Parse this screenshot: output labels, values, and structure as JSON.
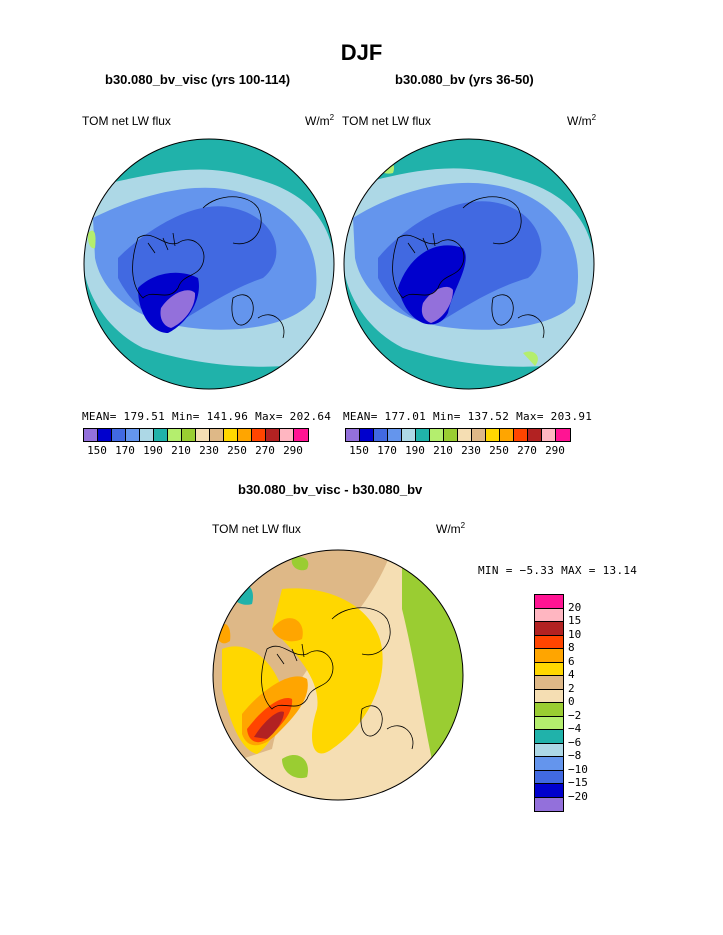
{
  "title": "DJF",
  "panels": [
    {
      "subtitle": "b30.080_bv_visc (yrs 100-114)",
      "left_label": "TOM net LW flux",
      "units_base": "W/m",
      "units_exp": "2",
      "stats": "MEAN= 179.51  Min= 141.96  Max= 202.64"
    },
    {
      "subtitle": "b30.080_bv (yrs 36-50)",
      "left_label": "TOM net LW flux",
      "units_base": "W/m",
      "units_exp": "2",
      "stats": "MEAN= 177.01  Min= 137.52  Max= 203.91"
    }
  ],
  "diff_panel": {
    "subtitle": "b30.080_bv_visc - b30.080_bv",
    "left_label": "TOM net LW flux",
    "units_base": "W/m",
    "units_exp": "2",
    "minmax": "MIN =  −5.33 MAX =  13.14"
  },
  "colorbar_abs": {
    "colors": [
      "#9370db",
      "#0000cd",
      "#4169e1",
      "#6495ed",
      "#add8e6",
      "#20b2aa",
      "#b4ee6e",
      "#9acd32",
      "#f5deb3",
      "#deb887",
      "#ffd700",
      "#ffa500",
      "#ff4500",
      "#b22222",
      "#ffb6c1",
      "#ff1493"
    ],
    "labels": [
      "150",
      "170",
      "190",
      "210",
      "230",
      "250",
      "270",
      "290"
    ]
  },
  "colorbar_diff": {
    "colors_top_to_bottom": [
      "#ff1493",
      "#ffb6c1",
      "#b22222",
      "#ff4500",
      "#ffa500",
      "#ffd700",
      "#deb887",
      "#f5deb3",
      "#9acd32",
      "#b4ee6e",
      "#20b2aa",
      "#add8e6",
      "#6495ed",
      "#4169e1",
      "#0000cd",
      "#9370db"
    ],
    "labels_top_to_bottom": [
      "20",
      "15",
      "10",
      "8",
      "6",
      "4",
      "2",
      "0",
      "−2",
      "−4",
      "−6",
      "−8",
      "−10",
      "−15",
      "−20"
    ]
  }
}
